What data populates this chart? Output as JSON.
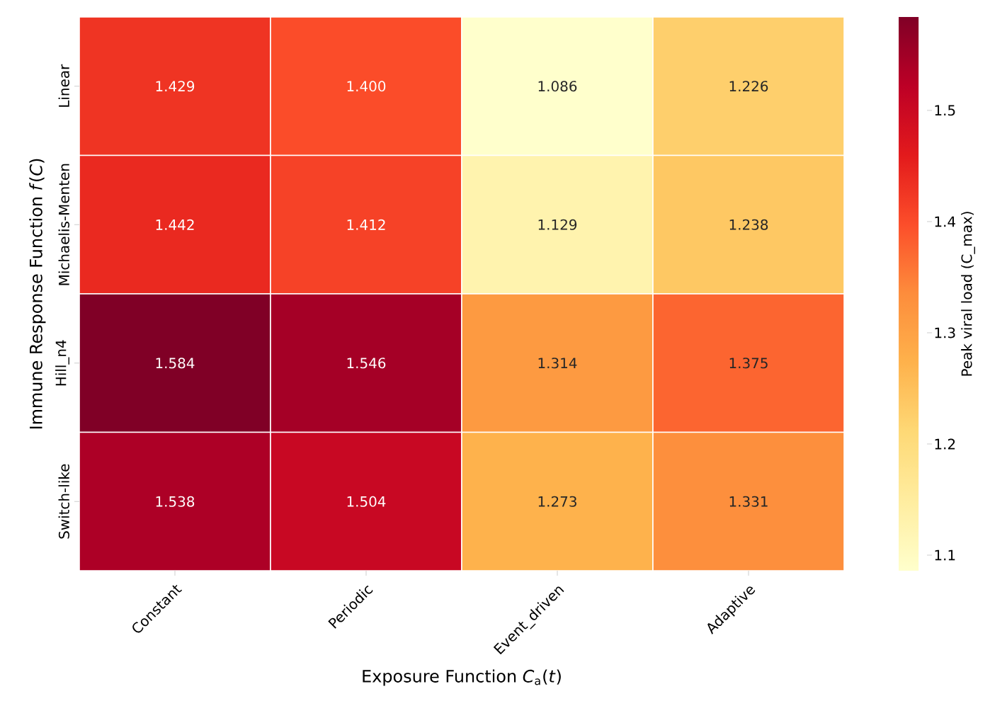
{
  "chart_data": {
    "type": "heatmap",
    "categories": [
      "Constant",
      "Periodic",
      "Event_driven",
      "Adaptive"
    ],
    "y_categories": [
      "Linear",
      "Michaelis-Menten",
      "Hill_n4",
      "Switch-like"
    ],
    "cells": [
      [
        1.429,
        1.4,
        1.086,
        1.226
      ],
      [
        1.442,
        1.412,
        1.129,
        1.238
      ],
      [
        1.584,
        1.546,
        1.314,
        1.375
      ],
      [
        1.538,
        1.504,
        1.273,
        1.331
      ]
    ],
    "cell_labels": [
      [
        "1.429",
        "1.400",
        "1.086",
        "1.226"
      ],
      [
        "1.442",
        "1.412",
        "1.129",
        "1.238"
      ],
      [
        "1.584",
        "1.546",
        "1.314",
        "1.375"
      ],
      [
        "1.538",
        "1.504",
        "1.273",
        "1.331"
      ]
    ],
    "data_labels": true,
    "xlabel": "Exposure Function *C*$_{a}$(*t*)",
    "ylabel": "Immune Response Function *f*(*C*)",
    "clabel": "Peak viral load (C_max)",
    "clim": [
      1.086,
      1.584
    ],
    "cticks": [
      1.1,
      1.2,
      1.3,
      1.4,
      1.5
    ]
  }
}
